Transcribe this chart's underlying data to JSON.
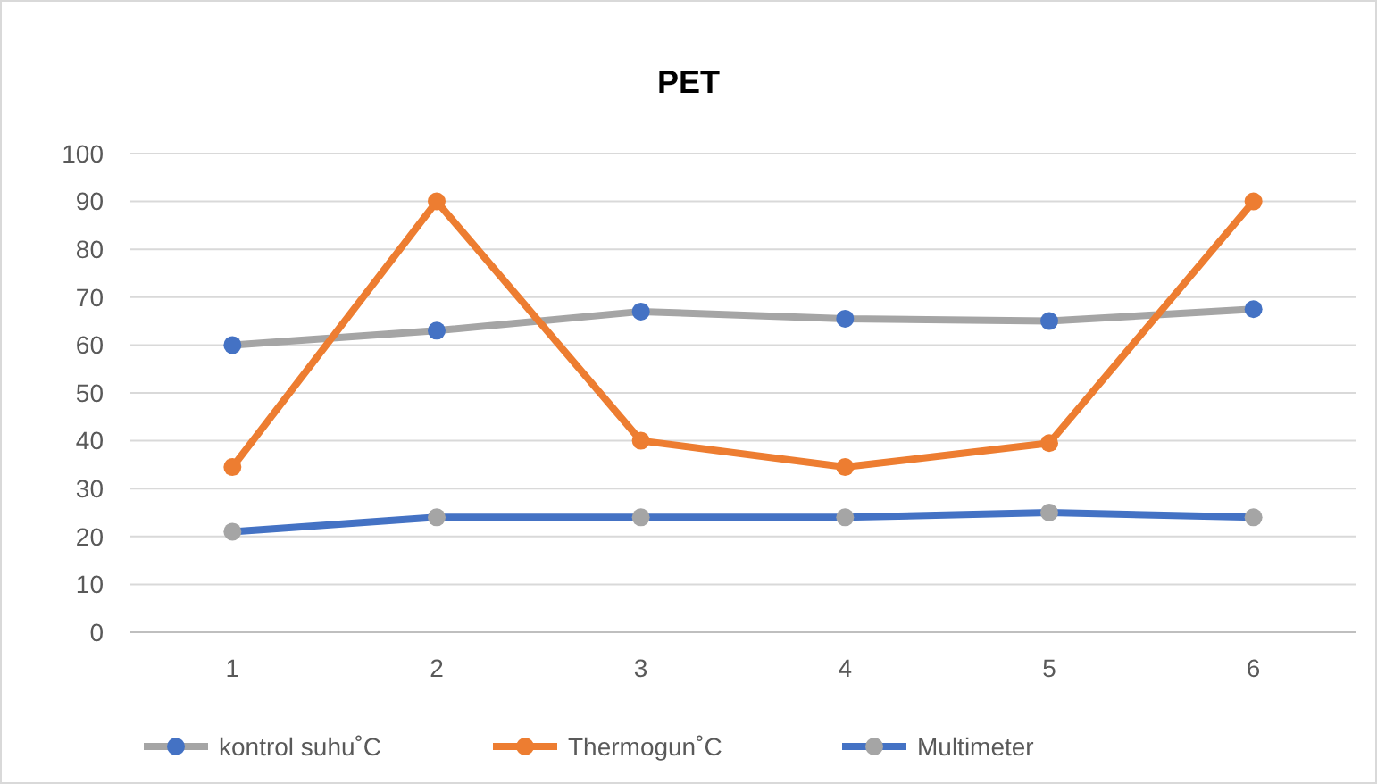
{
  "chart_data": {
    "type": "line",
    "title": "PET",
    "categories": [
      "1",
      "2",
      "3",
      "4",
      "5",
      "6"
    ],
    "series": [
      {
        "name": "kontrol suhu˚C",
        "color": "#a5a5a5",
        "colors": [
          "#4472c4",
          "#4472c4",
          "#4472c4",
          "#4472c4",
          "#4472c4",
          "#4472c4"
        ],
        "values": [
          60,
          63,
          67,
          65.5,
          65,
          67.5
        ]
      },
      {
        "name": "Thermogun˚C",
        "color": "#ed7d31",
        "colors": [
          "#ed7d31",
          "#ed7d31",
          "#ed7d31",
          "#ed7d31",
          "#ed7d31",
          "#ed7d31"
        ],
        "values": [
          34.5,
          90,
          40,
          34.5,
          39.5,
          90
        ]
      },
      {
        "name": "Multimeter",
        "color": "#4472c4",
        "colors": [
          "#a5a5a5",
          "#a5a5a5",
          "#a5a5a5",
          "#a5a5a5",
          "#a5a5a5",
          "#a5a5a5"
        ],
        "values": [
          21,
          24,
          24,
          24,
          25,
          24
        ]
      }
    ],
    "ylim": [
      0,
      100
    ],
    "yticks": [
      0,
      10,
      20,
      30,
      40,
      50,
      60,
      70,
      80,
      90,
      100
    ],
    "grid": "y",
    "legend": "bottom",
    "marker": "circle",
    "line_style": "solid"
  }
}
